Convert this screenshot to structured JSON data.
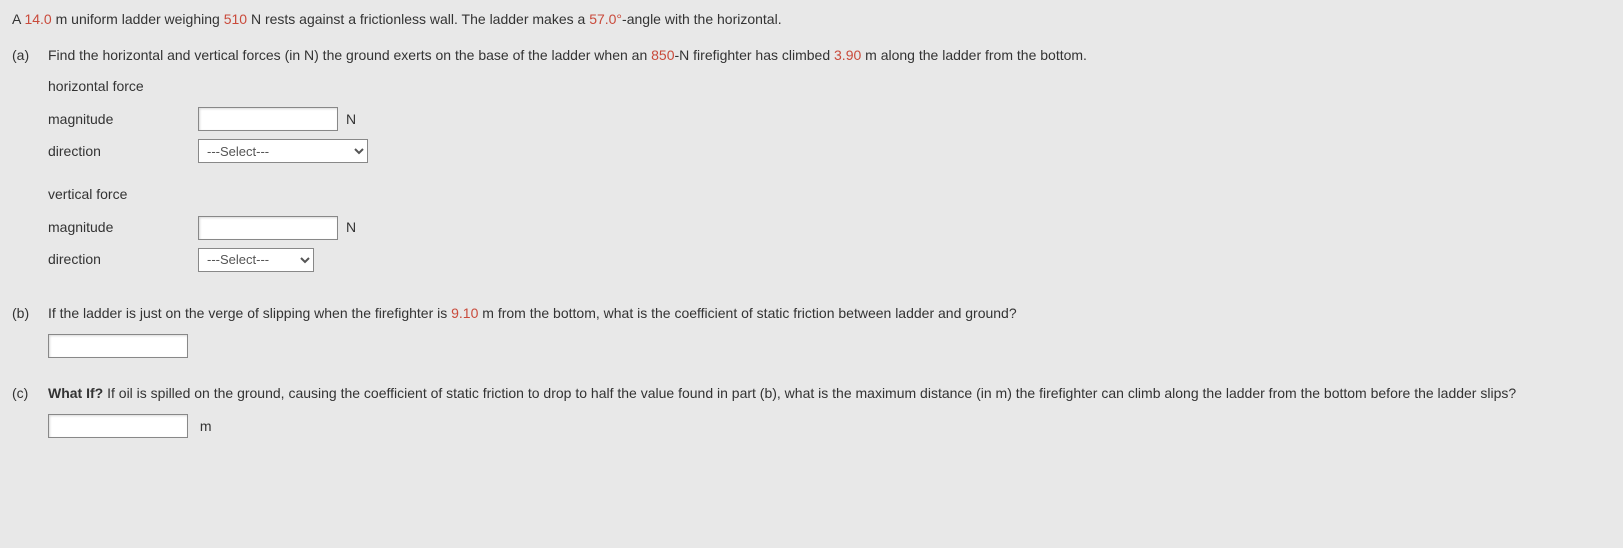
{
  "intro": {
    "prefix": "A ",
    "val1": "14.0",
    "mid1": " m uniform ladder weighing ",
    "val2": "510",
    "mid2": " N rests against a frictionless wall. The ladder makes a ",
    "val3": "57.0°",
    "suffix": "-angle with the horizontal."
  },
  "partA": {
    "label": "(a)",
    "q_prefix": "Find the horizontal and vertical forces (in N) the ground exerts on the base of the ladder when an ",
    "val1": "850",
    "q_mid": "-N firefighter has climbed ",
    "val2": "3.90",
    "q_suffix": " m along the ladder from the bottom.",
    "horiz_label": "horizontal force",
    "vert_label": "vertical force",
    "magnitude_label": "magnitude",
    "direction_label": "direction",
    "unit_n": "N",
    "select_placeholder": "---Select---"
  },
  "partB": {
    "label": "(b)",
    "q_prefix": "If the ladder is just on the verge of slipping when the firefighter is ",
    "val1": "9.10",
    "q_suffix": " m from the bottom, what is the coefficient of static friction between ladder and ground?"
  },
  "partC": {
    "label": "(c)",
    "bold_prefix": "What If?",
    "q_text": " If oil is spilled on the ground, causing the coefficient of static friction to drop to half the value found in part (b), what is the maximum distance (in m) the firefighter can climb along the ladder from the bottom before the ladder slips?",
    "unit_m": "m"
  }
}
